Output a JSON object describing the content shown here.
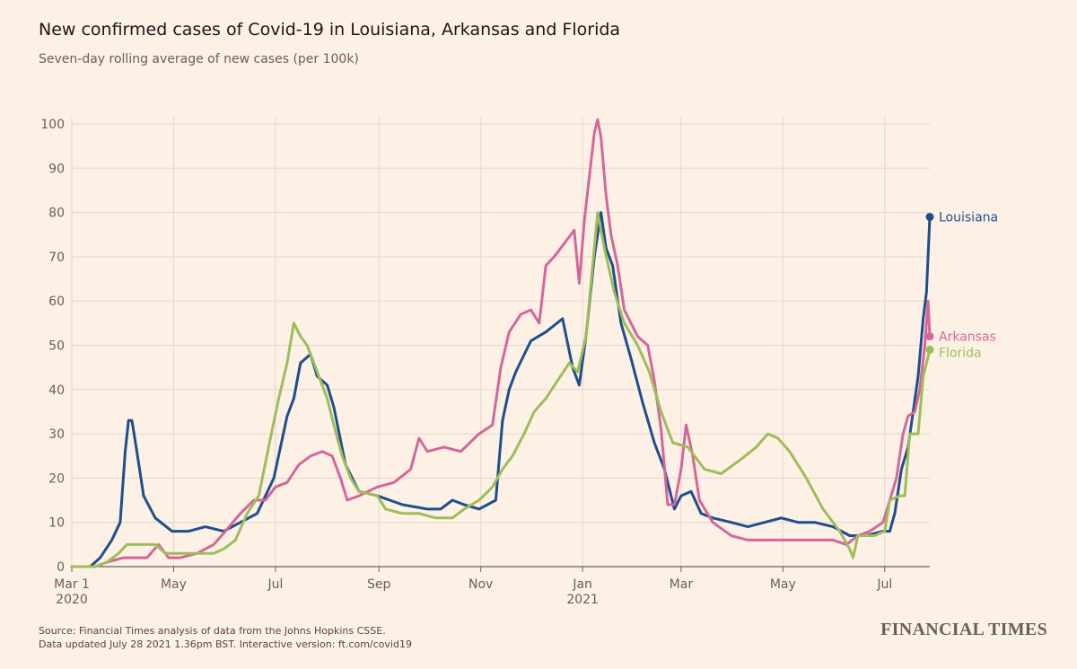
{
  "title": "New confirmed cases of Covid-19 in Louisiana, Arkansas and Florida",
  "subtitle": "Seven-day rolling average of new cases (per 100k)",
  "source_line1": "Source: Financial Times analysis of data from the Johns Hopkins CSSE.",
  "source_line2": "Data updated July 28 2021 1.36pm BST. Interactive version: ft.com/covid19",
  "brand": "FINANCIAL TIMES",
  "chart_data": {
    "type": "line",
    "ylim": [
      0,
      100
    ],
    "yticks": [
      0,
      10,
      20,
      30,
      40,
      50,
      60,
      70,
      80,
      90,
      100
    ],
    "x_range": [
      "2020-03-01",
      "2021-07-28"
    ],
    "x_ticks": [
      {
        "date": "2020-03-01",
        "label": "Mar 1",
        "sublabel": "2020"
      },
      {
        "date": "2020-05-01",
        "label": "May",
        "sublabel": ""
      },
      {
        "date": "2020-07-01",
        "label": "Jul",
        "sublabel": ""
      },
      {
        "date": "2020-09-01",
        "label": "Sep",
        "sublabel": ""
      },
      {
        "date": "2020-11-01",
        "label": "Nov",
        "sublabel": ""
      },
      {
        "date": "2021-01-01",
        "label": "Jan",
        "sublabel": "2021"
      },
      {
        "date": "2021-03-01",
        "label": "Mar",
        "sublabel": ""
      },
      {
        "date": "2021-05-01",
        "label": "May",
        "sublabel": ""
      },
      {
        "date": "2021-07-01",
        "label": "Jul",
        "sublabel": ""
      }
    ],
    "grid": true,
    "legend": "end-of-line labels",
    "series": [
      {
        "name": "Louisiana",
        "color": "#1f4e8c",
        "points": [
          [
            "2020-03-01",
            0
          ],
          [
            "2020-03-12",
            0
          ],
          [
            "2020-03-18",
            2
          ],
          [
            "2020-03-25",
            6
          ],
          [
            "2020-03-30",
            10
          ],
          [
            "2020-04-02",
            26
          ],
          [
            "2020-04-04",
            33
          ],
          [
            "2020-04-06",
            33
          ],
          [
            "2020-04-09",
            26
          ],
          [
            "2020-04-13",
            16
          ],
          [
            "2020-04-20",
            11
          ],
          [
            "2020-04-30",
            8
          ],
          [
            "2020-05-10",
            8
          ],
          [
            "2020-05-20",
            9
          ],
          [
            "2020-05-31",
            8
          ],
          [
            "2020-06-10",
            10
          ],
          [
            "2020-06-20",
            12
          ],
          [
            "2020-06-30",
            20
          ],
          [
            "2020-07-08",
            34
          ],
          [
            "2020-07-12",
            38
          ],
          [
            "2020-07-16",
            46
          ],
          [
            "2020-07-22",
            48
          ],
          [
            "2020-07-26",
            43
          ],
          [
            "2020-08-01",
            41
          ],
          [
            "2020-08-05",
            36
          ],
          [
            "2020-08-12",
            23
          ],
          [
            "2020-08-20",
            17
          ],
          [
            "2020-08-31",
            16
          ],
          [
            "2020-09-15",
            14
          ],
          [
            "2020-09-30",
            13
          ],
          [
            "2020-10-08",
            13
          ],
          [
            "2020-10-15",
            15
          ],
          [
            "2020-10-22",
            14
          ],
          [
            "2020-10-31",
            13
          ],
          [
            "2020-11-10",
            15
          ],
          [
            "2020-11-14",
            33
          ],
          [
            "2020-11-18",
            40
          ],
          [
            "2020-11-22",
            44
          ],
          [
            "2020-12-01",
            51
          ],
          [
            "2020-12-10",
            53
          ],
          [
            "2020-12-20",
            56
          ],
          [
            "2020-12-26",
            45
          ],
          [
            "2020-12-30",
            41
          ],
          [
            "2021-01-03",
            52
          ],
          [
            "2021-01-08",
            70
          ],
          [
            "2021-01-12",
            80
          ],
          [
            "2021-01-15",
            72
          ],
          [
            "2021-01-19",
            68
          ],
          [
            "2021-01-24",
            55
          ],
          [
            "2021-01-30",
            47
          ],
          [
            "2021-02-06",
            37
          ],
          [
            "2021-02-13",
            28
          ],
          [
            "2021-02-19",
            22
          ],
          [
            "2021-02-25",
            13
          ],
          [
            "2021-03-01",
            16
          ],
          [
            "2021-03-07",
            17
          ],
          [
            "2021-03-13",
            12
          ],
          [
            "2021-03-20",
            11
          ],
          [
            "2021-03-31",
            10
          ],
          [
            "2021-04-10",
            9
          ],
          [
            "2021-04-20",
            10
          ],
          [
            "2021-04-30",
            11
          ],
          [
            "2021-05-10",
            10
          ],
          [
            "2021-05-20",
            10
          ],
          [
            "2021-05-31",
            9
          ],
          [
            "2021-06-10",
            7
          ],
          [
            "2021-06-20",
            7
          ],
          [
            "2021-06-30",
            8
          ],
          [
            "2021-07-04",
            8
          ],
          [
            "2021-07-07",
            12
          ],
          [
            "2021-07-11",
            22
          ],
          [
            "2021-07-15",
            27
          ],
          [
            "2021-07-18",
            35
          ],
          [
            "2021-07-21",
            43
          ],
          [
            "2021-07-24",
            56
          ],
          [
            "2021-07-26",
            62
          ],
          [
            "2021-07-28",
            79
          ]
        ]
      },
      {
        "name": "Arkansas",
        "color": "#d4679a",
        "points": [
          [
            "2020-03-01",
            0
          ],
          [
            "2020-03-15",
            0
          ],
          [
            "2020-03-22",
            1
          ],
          [
            "2020-04-01",
            2
          ],
          [
            "2020-04-15",
            2
          ],
          [
            "2020-04-22",
            5
          ],
          [
            "2020-04-28",
            2
          ],
          [
            "2020-05-05",
            2
          ],
          [
            "2020-05-15",
            3
          ],
          [
            "2020-05-25",
            5
          ],
          [
            "2020-06-01",
            8
          ],
          [
            "2020-06-10",
            12
          ],
          [
            "2020-06-18",
            15
          ],
          [
            "2020-06-25",
            15
          ],
          [
            "2020-07-01",
            18
          ],
          [
            "2020-07-08",
            19
          ],
          [
            "2020-07-15",
            23
          ],
          [
            "2020-07-22",
            25
          ],
          [
            "2020-07-29",
            26
          ],
          [
            "2020-08-04",
            25
          ],
          [
            "2020-08-09",
            20
          ],
          [
            "2020-08-13",
            15
          ],
          [
            "2020-08-20",
            16
          ],
          [
            "2020-08-31",
            18
          ],
          [
            "2020-09-10",
            19
          ],
          [
            "2020-09-20",
            22
          ],
          [
            "2020-09-25",
            29
          ],
          [
            "2020-09-30",
            26
          ],
          [
            "2020-10-10",
            27
          ],
          [
            "2020-10-20",
            26
          ],
          [
            "2020-10-31",
            30
          ],
          [
            "2020-11-08",
            32
          ],
          [
            "2020-11-13",
            45
          ],
          [
            "2020-11-18",
            53
          ],
          [
            "2020-11-25",
            57
          ],
          [
            "2020-12-01",
            58
          ],
          [
            "2020-12-06",
            55
          ],
          [
            "2020-12-10",
            68
          ],
          [
            "2020-12-15",
            70
          ],
          [
            "2020-12-21",
            73
          ],
          [
            "2020-12-27",
            76
          ],
          [
            "2020-12-30",
            64
          ],
          [
            "2021-01-02",
            78
          ],
          [
            "2021-01-05",
            88
          ],
          [
            "2021-01-08",
            98
          ],
          [
            "2021-01-10",
            101
          ],
          [
            "2021-01-12",
            97
          ],
          [
            "2021-01-15",
            84
          ],
          [
            "2021-01-18",
            75
          ],
          [
            "2021-01-22",
            68
          ],
          [
            "2021-01-26",
            58
          ],
          [
            "2021-02-03",
            52
          ],
          [
            "2021-02-09",
            50
          ],
          [
            "2021-02-13",
            42
          ],
          [
            "2021-02-17",
            31
          ],
          [
            "2021-02-21",
            14
          ],
          [
            "2021-02-25",
            14
          ],
          [
            "2021-03-01",
            22
          ],
          [
            "2021-03-04",
            32
          ],
          [
            "2021-03-08",
            25
          ],
          [
            "2021-03-12",
            15
          ],
          [
            "2021-03-20",
            10
          ],
          [
            "2021-03-31",
            7
          ],
          [
            "2021-04-10",
            6
          ],
          [
            "2021-04-20",
            6
          ],
          [
            "2021-04-30",
            6
          ],
          [
            "2021-05-10",
            6
          ],
          [
            "2021-05-20",
            6
          ],
          [
            "2021-05-31",
            6
          ],
          [
            "2021-06-08",
            5
          ],
          [
            "2021-06-15",
            7
          ],
          [
            "2021-06-22",
            8
          ],
          [
            "2021-06-30",
            10
          ],
          [
            "2021-07-04",
            15
          ],
          [
            "2021-07-08",
            20
          ],
          [
            "2021-07-12",
            30
          ],
          [
            "2021-07-15",
            34
          ],
          [
            "2021-07-19",
            35
          ],
          [
            "2021-07-22",
            40
          ],
          [
            "2021-07-25",
            50
          ],
          [
            "2021-07-27",
            60
          ],
          [
            "2021-07-28",
            52
          ]
        ]
      },
      {
        "name": "Florida",
        "color": "#9dbd5a",
        "points": [
          [
            "2020-03-01",
            0
          ],
          [
            "2020-03-15",
            0
          ],
          [
            "2020-03-22",
            1
          ],
          [
            "2020-03-29",
            3
          ],
          [
            "2020-04-03",
            5
          ],
          [
            "2020-04-10",
            5
          ],
          [
            "2020-04-20",
            5
          ],
          [
            "2020-04-26",
            3
          ],
          [
            "2020-05-05",
            3
          ],
          [
            "2020-05-15",
            3
          ],
          [
            "2020-05-25",
            3
          ],
          [
            "2020-05-31",
            4
          ],
          [
            "2020-06-07",
            6
          ],
          [
            "2020-06-14",
            12
          ],
          [
            "2020-06-21",
            16
          ],
          [
            "2020-06-28",
            29
          ],
          [
            "2020-07-03",
            38
          ],
          [
            "2020-07-08",
            46
          ],
          [
            "2020-07-12",
            55
          ],
          [
            "2020-07-16",
            52
          ],
          [
            "2020-07-20",
            50
          ],
          [
            "2020-07-24",
            46
          ],
          [
            "2020-07-28",
            42
          ],
          [
            "2020-08-01",
            38
          ],
          [
            "2020-08-05",
            32
          ],
          [
            "2020-08-10",
            25
          ],
          [
            "2020-08-15",
            20
          ],
          [
            "2020-08-20",
            17
          ],
          [
            "2020-08-31",
            16
          ],
          [
            "2020-09-05",
            13
          ],
          [
            "2020-09-15",
            12
          ],
          [
            "2020-09-25",
            12
          ],
          [
            "2020-10-05",
            11
          ],
          [
            "2020-10-15",
            11
          ],
          [
            "2020-10-22",
            13
          ],
          [
            "2020-10-31",
            15
          ],
          [
            "2020-11-08",
            18
          ],
          [
            "2020-11-14",
            22
          ],
          [
            "2020-11-20",
            25
          ],
          [
            "2020-11-27",
            30
          ],
          [
            "2020-12-03",
            35
          ],
          [
            "2020-12-10",
            38
          ],
          [
            "2020-12-17",
            42
          ],
          [
            "2020-12-24",
            46
          ],
          [
            "2020-12-29",
            44
          ],
          [
            "2021-01-03",
            52
          ],
          [
            "2021-01-07",
            68
          ],
          [
            "2021-01-10",
            80
          ],
          [
            "2021-01-14",
            72
          ],
          [
            "2021-01-20",
            62
          ],
          [
            "2021-01-26",
            55
          ],
          [
            "2021-02-03",
            50
          ],
          [
            "2021-02-10",
            44
          ],
          [
            "2021-02-17",
            35
          ],
          [
            "2021-02-24",
            28
          ],
          [
            "2021-03-05",
            27
          ],
          [
            "2021-03-15",
            22
          ],
          [
            "2021-03-25",
            21
          ],
          [
            "2021-04-05",
            24
          ],
          [
            "2021-04-15",
            27
          ],
          [
            "2021-04-22",
            30
          ],
          [
            "2021-04-28",
            29
          ],
          [
            "2021-05-05",
            26
          ],
          [
            "2021-05-15",
            20
          ],
          [
            "2021-05-25",
            13
          ],
          [
            "2021-06-04",
            8
          ],
          [
            "2021-06-10",
            4
          ],
          [
            "2021-06-12",
            2
          ],
          [
            "2021-06-15",
            7
          ],
          [
            "2021-06-25",
            7
          ],
          [
            "2021-07-01",
            8
          ],
          [
            "2021-07-04",
            15
          ],
          [
            "2021-07-10",
            16
          ],
          [
            "2021-07-13",
            16
          ],
          [
            "2021-07-16",
            30
          ],
          [
            "2021-07-21",
            30
          ],
          [
            "2021-07-24",
            43
          ],
          [
            "2021-07-28",
            49
          ]
        ]
      }
    ]
  }
}
